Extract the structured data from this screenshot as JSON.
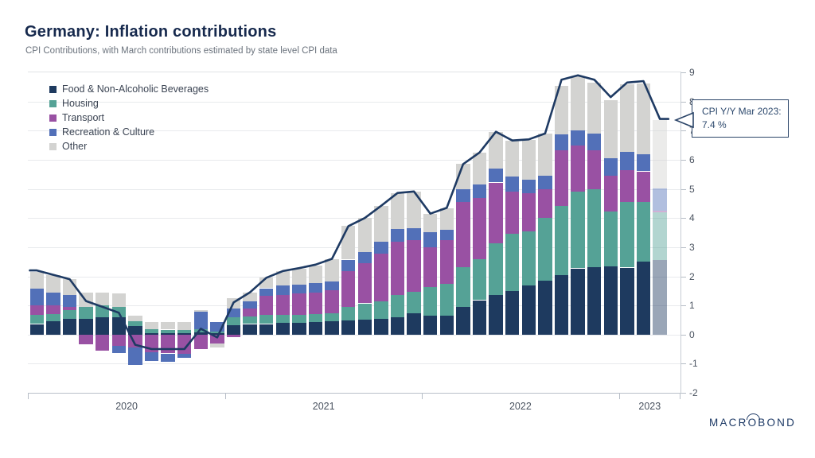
{
  "header": {
    "title": "Germany: Inflation contributions",
    "subtitle": "CPI Contributions, with March contributions estimated by state level CPI data"
  },
  "legend": [
    {
      "label": "Food & Non-Alcoholic Beverages",
      "color": "#1e3a5f"
    },
    {
      "label": "Housing",
      "color": "#55a296"
    },
    {
      "label": "Transport",
      "color": "#9951a3"
    },
    {
      "label": "Recreation & Culture",
      "color": "#5270b8"
    },
    {
      "label": "Other",
      "color": "#d3d3d1"
    }
  ],
  "tooltip": {
    "line1": "CPI Y/Y Mar 2023:",
    "line2": "7.4 %",
    "border_color": "#2a4468"
  },
  "branding": {
    "logo_pre": "MACR",
    "logo_o": "O",
    "logo_post": "BOND"
  },
  "axis": {
    "y_ticks": [
      9,
      8,
      7,
      6,
      5,
      4,
      3,
      2,
      1,
      0,
      -1,
      -2
    ],
    "year_labels": [
      "2020",
      "2021",
      "2022",
      "2023"
    ],
    "year_start_month_index": [
      0,
      12,
      24,
      36
    ]
  },
  "chart_data": {
    "type": "stacked-bar-line",
    "title": "Germany: Inflation contributions",
    "ylim": [
      -2,
      9
    ],
    "grid": "horizontal",
    "legend_position": "top-left",
    "categories": [
      "2020-01",
      "2020-02",
      "2020-03",
      "2020-04",
      "2020-05",
      "2020-06",
      "2020-07",
      "2020-08",
      "2020-09",
      "2020-10",
      "2020-11",
      "2020-12",
      "2021-01",
      "2021-02",
      "2021-03",
      "2021-04",
      "2021-05",
      "2021-06",
      "2021-07",
      "2021-08",
      "2021-09",
      "2021-10",
      "2021-11",
      "2021-12",
      "2022-01",
      "2022-02",
      "2022-03",
      "2022-04",
      "2022-05",
      "2022-06",
      "2022-07",
      "2022-08",
      "2022-09",
      "2022-10",
      "2022-11",
      "2022-12",
      "2023-01",
      "2023-02",
      "2023-03"
    ],
    "estimated_months": [
      "2023-03"
    ],
    "series": [
      {
        "name": "Food & Non-Alcoholic Beverages",
        "color": "#1e3a5f",
        "values": [
          0.36,
          0.45,
          0.55,
          0.55,
          0.6,
          0.6,
          0.3,
          0.05,
          0.05,
          0.04,
          0.08,
          0.05,
          0.33,
          0.36,
          0.36,
          0.41,
          0.41,
          0.43,
          0.45,
          0.48,
          0.5,
          0.55,
          0.59,
          0.73,
          0.64,
          0.64,
          0.95,
          1.18,
          1.36,
          1.5,
          1.68,
          1.86,
          2.05,
          2.27,
          2.32,
          2.34,
          2.3,
          2.5,
          2.55
        ]
      },
      {
        "name": "Housing",
        "color": "#55a296",
        "values": [
          0.32,
          0.25,
          0.28,
          0.4,
          0.4,
          0.35,
          0.15,
          0.14,
          0.12,
          0.12,
          0.1,
          0.05,
          0.27,
          0.27,
          0.32,
          0.27,
          0.27,
          0.27,
          0.27,
          0.47,
          0.57,
          0.59,
          0.77,
          0.73,
          1.0,
          1.09,
          1.36,
          1.41,
          1.77,
          1.95,
          1.86,
          2.14,
          2.36,
          2.64,
          2.68,
          1.89,
          2.25,
          2.05,
          1.64
        ]
      },
      {
        "name": "Transport",
        "color": "#9951a3",
        "values": [
          0.32,
          0.31,
          0.12,
          -0.34,
          -0.55,
          -0.4,
          -0.45,
          -0.6,
          -0.65,
          -0.66,
          -0.5,
          -0.3,
          -0.1,
          0.27,
          0.64,
          0.68,
          0.73,
          0.75,
          0.79,
          1.23,
          1.37,
          1.64,
          1.82,
          1.77,
          1.36,
          1.5,
          2.23,
          2.09,
          2.09,
          1.45,
          1.32,
          1.0,
          1.91,
          1.59,
          1.32,
          1.23,
          1.09,
          1.05,
          0.06
        ]
      },
      {
        "name": "Recreation & Culture",
        "color": "#5270b8",
        "values": [
          0.59,
          0.42,
          0.4,
          0.0,
          0.0,
          -0.24,
          -0.6,
          -0.3,
          -0.29,
          -0.13,
          0.6,
          0.32,
          0.3,
          0.23,
          0.27,
          0.32,
          0.29,
          0.32,
          0.3,
          0.39,
          0.4,
          0.41,
          0.45,
          0.41,
          0.52,
          0.36,
          0.45,
          0.48,
          0.47,
          0.52,
          0.45,
          0.45,
          0.55,
          0.5,
          0.59,
          0.59,
          0.64,
          0.59,
          0.76
        ]
      },
      {
        "name": "Other",
        "color": "#d3d3d1",
        "values": [
          0.56,
          0.62,
          0.55,
          0.5,
          0.45,
          0.45,
          0.2,
          0.24,
          0.27,
          0.26,
          0.05,
          -0.15,
          0.35,
          0.32,
          0.36,
          0.5,
          0.55,
          0.59,
          0.79,
          1.15,
          1.16,
          1.23,
          1.23,
          1.27,
          0.62,
          0.75,
          0.86,
          1.09,
          1.27,
          1.24,
          1.38,
          1.45,
          1.68,
          1.86,
          1.73,
          2.0,
          2.32,
          2.43,
          2.36
        ]
      }
    ],
    "line": {
      "name": "CPI Y/Y",
      "color": "#1e3a63",
      "values": [
        2.2,
        2.05,
        1.9,
        1.15,
        0.95,
        0.75,
        -0.35,
        -0.5,
        -0.5,
        -0.5,
        0.2,
        -0.1,
        1.1,
        1.45,
        1.95,
        2.18,
        2.28,
        2.4,
        2.6,
        3.72,
        4.0,
        4.42,
        4.86,
        4.91,
        4.15,
        4.35,
        5.85,
        6.25,
        6.96,
        6.66,
        6.7,
        6.9,
        8.75,
        8.9,
        8.75,
        8.15,
        8.65,
        8.7,
        7.4
      ]
    }
  }
}
